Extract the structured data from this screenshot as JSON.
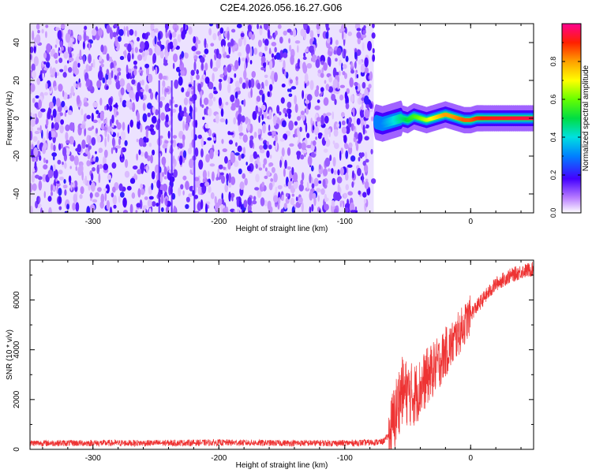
{
  "title": "C2E4.2026.056.16.27.G06",
  "chart_data": [
    {
      "type": "heatmap",
      "xlabel": "Height of straight line (km)",
      "ylabel": "Frequency (Hz)",
      "xlim": [
        -350,
        50
      ],
      "ylim": [
        -50,
        50
      ],
      "xticks": [
        -300,
        -200,
        -100,
        0
      ],
      "yticks": [
        -40,
        -20,
        0,
        20,
        40
      ],
      "noise_region_x": [
        -350,
        -77
      ],
      "signal_track": {
        "x": [
          -75,
          -70,
          -65,
          -60,
          -55,
          -50,
          -45,
          -40,
          -35,
          -30,
          -25,
          -20,
          -15,
          -10,
          -5,
          0,
          5,
          10,
          20,
          30,
          40,
          50
        ],
        "freq": [
          -2,
          -3,
          -2,
          -1,
          0,
          -1,
          1,
          0,
          -1,
          0,
          1,
          2,
          1,
          0,
          -1,
          -1,
          0,
          0,
          0,
          0,
          0,
          0
        ],
        "amplitude": [
          0.3,
          0.3,
          0.35,
          0.4,
          0.45,
          0.5,
          0.55,
          0.6,
          0.65,
          0.7,
          0.75,
          0.8,
          0.8,
          0.82,
          0.85,
          0.85,
          0.88,
          0.9,
          0.92,
          0.93,
          0.94,
          0.95
        ]
      },
      "colorbar": {
        "label": "Normalized spectral amplitude",
        "range": [
          0,
          1
        ],
        "ticks": [
          0.0,
          0.2,
          0.4,
          0.6,
          0.8
        ]
      }
    },
    {
      "type": "line",
      "xlabel": "Height of straight line (km)",
      "ylabel": "SNR (10 * v/v)",
      "xlim": [
        -350,
        50
      ],
      "ylim": [
        0,
        7600
      ],
      "xticks": [
        -300,
        -200,
        -100,
        0
      ],
      "yticks": [
        0,
        2000,
        4000,
        6000
      ],
      "series": [
        {
          "name": "SNR",
          "color": "#ee3333",
          "x": [
            -350,
            -300,
            -250,
            -200,
            -150,
            -100,
            -80,
            -70,
            -65,
            -60,
            -55,
            -50,
            -45,
            -40,
            -35,
            -30,
            -25,
            -20,
            -15,
            -10,
            -5,
            0,
            10,
            20,
            30,
            40,
            50
          ],
          "y": [
            200,
            200,
            200,
            220,
            200,
            200,
            220,
            250,
            500,
            1500,
            2500,
            2400,
            2300,
            2600,
            3000,
            3300,
            3600,
            4000,
            4300,
            4700,
            5100,
            5500,
            6100,
            6700,
            7000,
            7200,
            7300
          ]
        }
      ]
    }
  ]
}
